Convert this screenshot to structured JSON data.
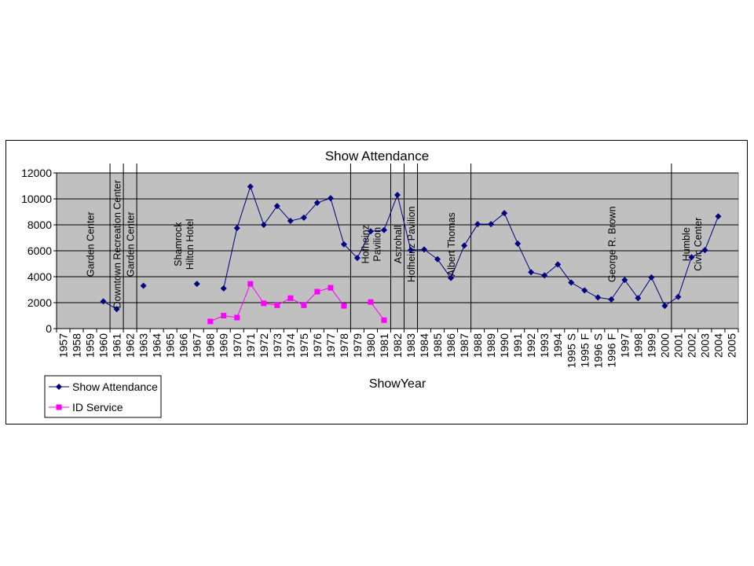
{
  "chart_data": {
    "type": "line",
    "title": "Show Attendance",
    "xlabel": "ShowYear",
    "ylabel": "",
    "ylim": [
      0,
      12000
    ],
    "yticks": [
      0,
      2000,
      4000,
      6000,
      8000,
      10000,
      12000
    ],
    "grid": true,
    "legend_position": "bottom-left",
    "categories": [
      "1957",
      "1958",
      "1959",
      "1960",
      "1961",
      "1962",
      "1963",
      "1964",
      "1965",
      "1966",
      "1967",
      "1968",
      "1969",
      "1970",
      "1971",
      "1972",
      "1973",
      "1974",
      "1975",
      "1976",
      "1977",
      "1978",
      "1979",
      "1980",
      "1981",
      "1982",
      "1983",
      "1984",
      "1985",
      "1986",
      "1987",
      "1988",
      "1989",
      "1990",
      "1991",
      "1992",
      "1993",
      "1994",
      "1995 S",
      "1995 F",
      "1996 S",
      "1996 F",
      "1997",
      "1998",
      "1999",
      "2000",
      "2001",
      "2002",
      "2003",
      "2004",
      "2005"
    ],
    "series": [
      {
        "name": "Show Attendance",
        "color": "#000080",
        "marker": "diamond",
        "values": [
          null,
          null,
          null,
          2100,
          1500,
          null,
          3300,
          null,
          null,
          null,
          3450,
          null,
          3100,
          7750,
          10950,
          8000,
          9450,
          8300,
          8550,
          9700,
          10050,
          6500,
          5450,
          7500,
          7600,
          10300,
          6050,
          6100,
          5350,
          3900,
          6400,
          8050,
          8050,
          8900,
          6550,
          4350,
          4100,
          4950,
          3550,
          2950,
          2400,
          2250,
          3750,
          2350,
          3950,
          1750,
          2450,
          5500,
          6050,
          8650,
          null
        ]
      },
      {
        "name": "ID Service",
        "color": "#ff00ff",
        "marker": "square",
        "values": [
          null,
          null,
          null,
          null,
          null,
          null,
          null,
          null,
          null,
          null,
          null,
          550,
          1000,
          850,
          3450,
          1950,
          1800,
          2350,
          1800,
          2850,
          3150,
          1750,
          null,
          2050,
          650,
          null,
          null,
          null,
          null,
          null,
          null,
          null,
          null,
          null,
          null,
          null,
          null,
          null,
          null,
          null,
          null,
          null,
          null,
          null,
          null,
          null,
          null,
          null,
          null,
          null,
          null
        ]
      }
    ],
    "venue_dividers_after": [
      "1960",
      "1961",
      "1962",
      "1978",
      "1981",
      "1982",
      "1983",
      "1987",
      "2000"
    ],
    "annotations": [
      {
        "text": [
          "Garden Center"
        ],
        "at": "1959"
      },
      {
        "text": [
          "Downtown Recreation Center"
        ],
        "at": "1961"
      },
      {
        "text": [
          "Garden Center"
        ],
        "at": "1962"
      },
      {
        "text": [
          "Shamrock",
          "Hilton Hotel"
        ],
        "at": "1966"
      },
      {
        "text": [
          "Hofheinz",
          "Pavilion"
        ],
        "at": "1980"
      },
      {
        "text": [
          "Astrohall"
        ],
        "at": "1982"
      },
      {
        "text": [
          "Hofheinz Pavilion"
        ],
        "at": "1983"
      },
      {
        "text": [
          "Albert Thomas"
        ],
        "at": "1986"
      },
      {
        "text": [
          "George R. Brown"
        ],
        "at": "1996 F"
      },
      {
        "text": [
          "Humble",
          "Civic Center"
        ],
        "at": "2002"
      }
    ]
  }
}
